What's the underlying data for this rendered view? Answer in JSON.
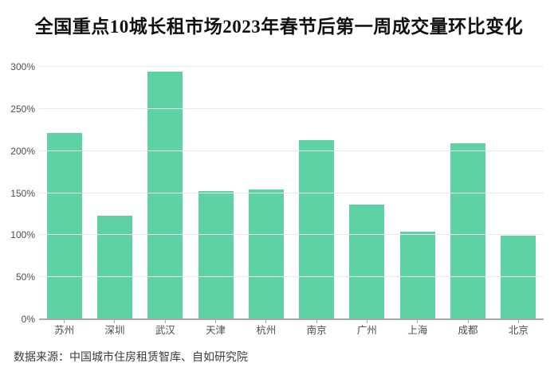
{
  "title": "全国重点10城长租市场2023年春节后第一周成交量环比变化",
  "source": "数据来源：中国城市住房租赁智库、自如研究院",
  "colors": {
    "bar": "#5fd2a5",
    "grid": "#e9e9e9",
    "axis": "#a9a9a9",
    "title_text": "#111111",
    "axis_label": "#4d4d4d",
    "source_text": "#3b3b3b",
    "background": "#ffffff"
  },
  "chart_data": {
    "type": "bar",
    "title": "全国重点10城长租市场2023年春节后第一周成交量环比变化",
    "categories": [
      "苏州",
      "深圳",
      "武汉",
      "天津",
      "杭州",
      "南京",
      "广州",
      "上海",
      "成都",
      "北京"
    ],
    "values": [
      221,
      123,
      294,
      152,
      154,
      213,
      136,
      104,
      209,
      99
    ],
    "unit": "%",
    "xlabel": "",
    "ylabel": "",
    "ylim": [
      0,
      300
    ],
    "yticks": [
      0,
      50,
      100,
      150,
      200,
      250,
      300
    ],
    "ytick_suffix": "%",
    "grid": true,
    "legend": false
  }
}
